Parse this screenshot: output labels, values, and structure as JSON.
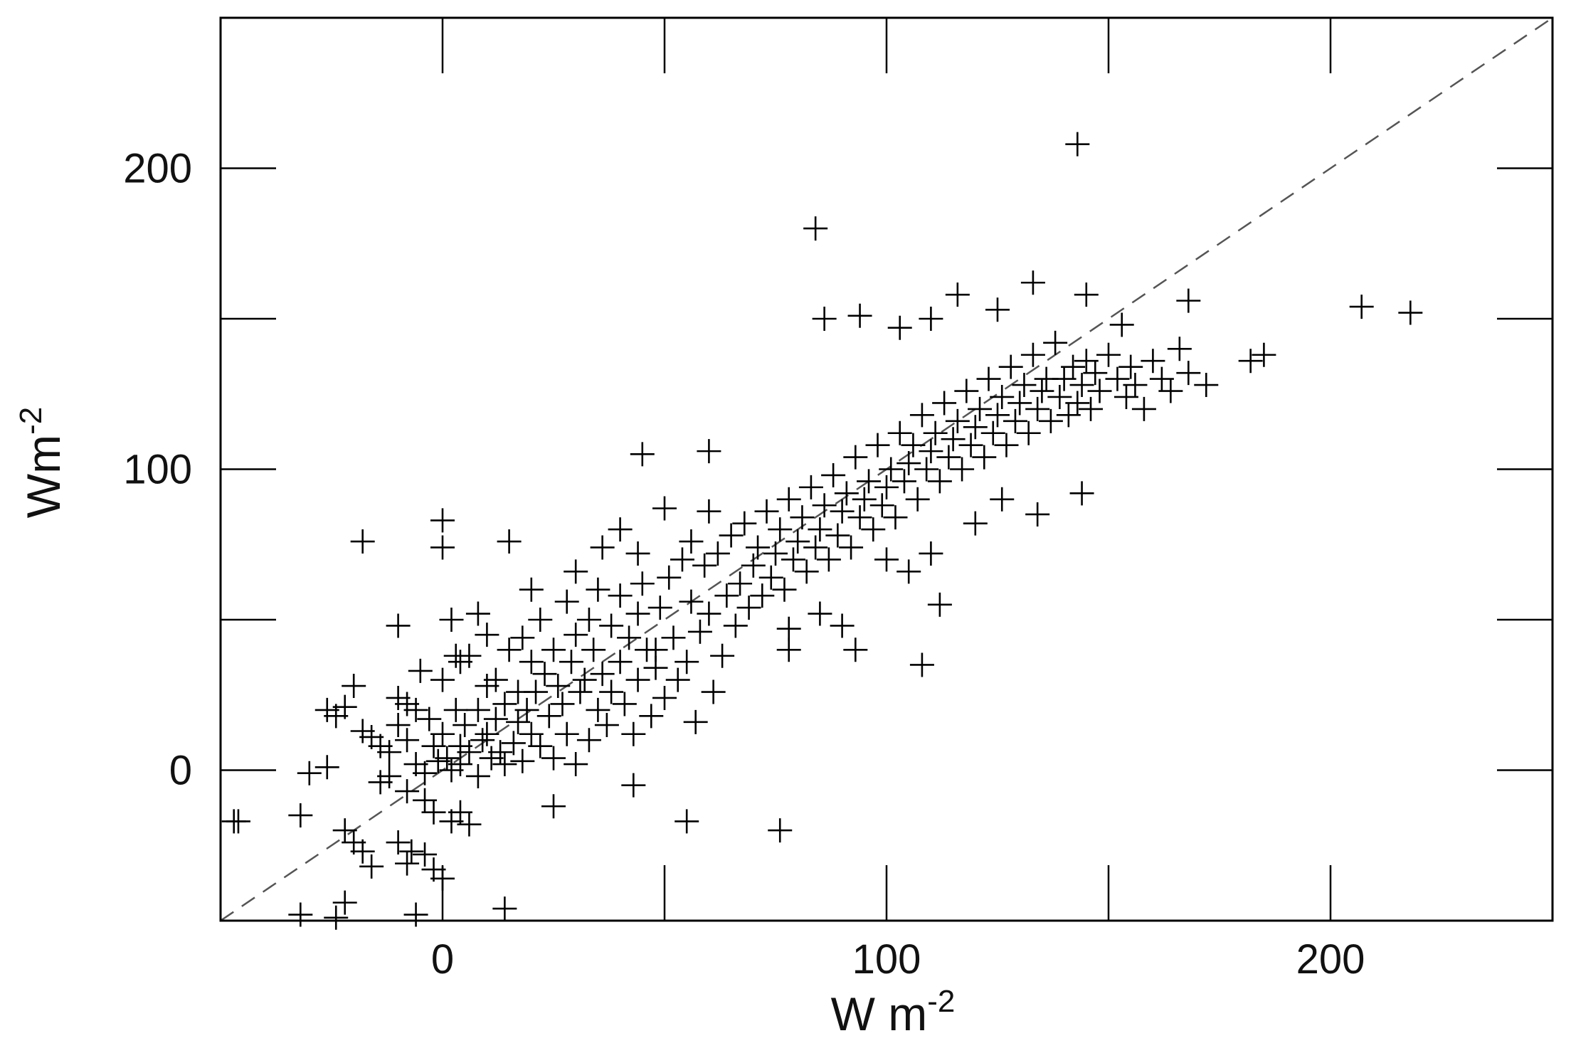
{
  "chart_data": {
    "type": "scatter",
    "title": "",
    "xlabel": {
      "base": "W m",
      "exponent": "-2"
    },
    "ylabel": {
      "base": "Wm",
      "exponent": "-2"
    },
    "xlim": [
      -50,
      250
    ],
    "ylim": [
      -50,
      250
    ],
    "xticks": [
      {
        "value": 0,
        "label": "0"
      },
      {
        "value": 100,
        "label": "100"
      },
      {
        "value": 200,
        "label": "200"
      }
    ],
    "yticks": [
      {
        "value": 0,
        "label": "0"
      },
      {
        "value": 100,
        "label": "100"
      },
      {
        "value": 200,
        "label": "200"
      }
    ],
    "minor_ticks": [
      50,
      150
    ],
    "reference_line": {
      "style": "dashed",
      "from": [
        -50,
        -50
      ],
      "to": [
        250,
        250
      ]
    },
    "marker": "plus",
    "grid": false,
    "series": [
      {
        "points": [
          [
            -46,
            -17
          ],
          [
            -32,
            -15
          ],
          [
            -30,
            -1
          ],
          [
            -26,
            1
          ],
          [
            -22,
            -20
          ],
          [
            -20,
            -24
          ],
          [
            -18,
            -27
          ],
          [
            -16,
            -32
          ],
          [
            -22,
            -44
          ],
          [
            -24,
            -49
          ],
          [
            -32,
            -48
          ],
          [
            -10,
            -24
          ],
          [
            -7,
            -27
          ],
          [
            -4,
            -28
          ],
          [
            -6,
            -48
          ],
          [
            -2,
            -33
          ],
          [
            0,
            -36
          ],
          [
            -8,
            -31
          ],
          [
            -14,
            -4
          ],
          [
            -8,
            -7
          ],
          [
            -4,
            -10
          ],
          [
            -2,
            -14
          ],
          [
            2,
            -17
          ],
          [
            4,
            -14
          ],
          [
            6,
            -18
          ],
          [
            -12,
            -2
          ],
          [
            -26,
            20
          ],
          [
            -24,
            18
          ],
          [
            -22,
            21
          ],
          [
            -20,
            28
          ],
          [
            -18,
            13
          ],
          [
            -16,
            11
          ],
          [
            -14,
            8
          ],
          [
            -12,
            6
          ],
          [
            -10,
            15
          ],
          [
            -10,
            24
          ],
          [
            -8,
            22
          ],
          [
            -8,
            10
          ],
          [
            -6,
            2
          ],
          [
            -5,
            33
          ],
          [
            -4,
            -1
          ],
          [
            -3,
            17
          ],
          [
            -2,
            8
          ],
          [
            -1,
            3
          ],
          [
            0,
            30
          ],
          [
            0,
            12
          ],
          [
            1,
            4
          ],
          [
            2,
            0
          ],
          [
            3,
            38
          ],
          [
            3,
            20
          ],
          [
            4,
            8
          ],
          [
            4,
            2
          ],
          [
            5,
            15
          ],
          [
            6,
            6
          ],
          [
            6,
            38
          ],
          [
            8,
            -2
          ],
          [
            8,
            20
          ],
          [
            9,
            10
          ],
          [
            10,
            12
          ],
          [
            10,
            28
          ],
          [
            11,
            4
          ],
          [
            12,
            17
          ],
          [
            12,
            30
          ],
          [
            13,
            6
          ],
          [
            14,
            22
          ],
          [
            14,
            2
          ],
          [
            15,
            40
          ],
          [
            16,
            9
          ],
          [
            17,
            16
          ],
          [
            17,
            26
          ],
          [
            18,
            44
          ],
          [
            18,
            3
          ],
          [
            19,
            20
          ],
          [
            20,
            36
          ],
          [
            20,
            12
          ],
          [
            21,
            26
          ],
          [
            22,
            8
          ],
          [
            22,
            50
          ],
          [
            23,
            32
          ],
          [
            24,
            18
          ],
          [
            25,
            4
          ],
          [
            25,
            40
          ],
          [
            26,
            28
          ],
          [
            27,
            22
          ],
          [
            28,
            12
          ],
          [
            28,
            56
          ],
          [
            29,
            36
          ],
          [
            30,
            45
          ],
          [
            30,
            2
          ],
          [
            31,
            26
          ],
          [
            32,
            30
          ],
          [
            33,
            10
          ],
          [
            33,
            50
          ],
          [
            34,
            40
          ],
          [
            35,
            20
          ],
          [
            35,
            60
          ],
          [
            36,
            32
          ],
          [
            37,
            15
          ],
          [
            38,
            48
          ],
          [
            38,
            26
          ],
          [
            40,
            36
          ],
          [
            40,
            58
          ],
          [
            41,
            22
          ],
          [
            42,
            44
          ],
          [
            43,
            12
          ],
          [
            44,
            52
          ],
          [
            44,
            30
          ],
          [
            45,
            62
          ],
          [
            46,
            40
          ],
          [
            47,
            18
          ],
          [
            48,
            34
          ],
          [
            49,
            54
          ],
          [
            50,
            24
          ],
          [
            51,
            64
          ],
          [
            52,
            44
          ],
          [
            53,
            30
          ],
          [
            54,
            70
          ],
          [
            55,
            36
          ],
          [
            56,
            56
          ],
          [
            57,
            16
          ],
          [
            58,
            46
          ],
          [
            59,
            68
          ],
          [
            60,
            52
          ],
          [
            61,
            26
          ],
          [
            62,
            72
          ],
          [
            63,
            38
          ],
          [
            64,
            58
          ],
          [
            65,
            78
          ],
          [
            66,
            48
          ],
          [
            67,
            62
          ],
          [
            68,
            82
          ],
          [
            69,
            54
          ],
          [
            70,
            68
          ],
          [
            71,
            74
          ],
          [
            72,
            58
          ],
          [
            73,
            86
          ],
          [
            74,
            64
          ],
          [
            75,
            72
          ],
          [
            76,
            80
          ],
          [
            77,
            60
          ],
          [
            78,
            90
          ],
          [
            79,
            70
          ],
          [
            80,
            76
          ],
          [
            81,
            84
          ],
          [
            82,
            66
          ],
          [
            83,
            94
          ],
          [
            84,
            74
          ],
          [
            85,
            80
          ],
          [
            86,
            88
          ],
          [
            87,
            70
          ],
          [
            88,
            98
          ],
          [
            89,
            78
          ],
          [
            90,
            86
          ],
          [
            91,
            92
          ],
          [
            92,
            74
          ],
          [
            93,
            104
          ],
          [
            94,
            84
          ],
          [
            95,
            90
          ],
          [
            96,
            96
          ],
          [
            97,
            80
          ],
          [
            98,
            108
          ],
          [
            99,
            88
          ],
          [
            100,
            94
          ],
          [
            101,
            100
          ],
          [
            102,
            84
          ],
          [
            103,
            112
          ],
          [
            104,
            96
          ],
          [
            105,
            102
          ],
          [
            106,
            108
          ],
          [
            107,
            90
          ],
          [
            108,
            118
          ],
          [
            109,
            100
          ],
          [
            110,
            106
          ],
          [
            111,
            112
          ],
          [
            112,
            96
          ],
          [
            113,
            122
          ],
          [
            114,
            104
          ],
          [
            115,
            110
          ],
          [
            116,
            116
          ],
          [
            117,
            100
          ],
          [
            118,
            126
          ],
          [
            119,
            108
          ],
          [
            120,
            114
          ],
          [
            121,
            120
          ],
          [
            122,
            104
          ],
          [
            123,
            130
          ],
          [
            124,
            112
          ],
          [
            125,
            118
          ],
          [
            126,
            124
          ],
          [
            127,
            108
          ],
          [
            128,
            134
          ],
          [
            129,
            116
          ],
          [
            130,
            122
          ],
          [
            131,
            128
          ],
          [
            132,
            112
          ],
          [
            133,
            138
          ],
          [
            134,
            120
          ],
          [
            135,
            126
          ],
          [
            136,
            130
          ],
          [
            137,
            116
          ],
          [
            138,
            142
          ],
          [
            139,
            124
          ],
          [
            140,
            130
          ],
          [
            141,
            118
          ],
          [
            142,
            134
          ],
          [
            143,
            122
          ],
          [
            144,
            128
          ],
          [
            145,
            136
          ],
          [
            146,
            120
          ],
          [
            147,
            132
          ],
          [
            148,
            126
          ],
          [
            150,
            138
          ],
          [
            152,
            130
          ],
          [
            154,
            124
          ],
          [
            155,
            134
          ],
          [
            156,
            128
          ],
          [
            158,
            120
          ],
          [
            160,
            136
          ],
          [
            162,
            130
          ],
          [
            164,
            126
          ],
          [
            166,
            140
          ],
          [
            168,
            132
          ],
          [
            172,
            128
          ],
          [
            182,
            136
          ],
          [
            185,
            138
          ],
          [
            207,
            154
          ],
          [
            218,
            152
          ],
          [
            168,
            156
          ],
          [
            143,
            208
          ],
          [
            84,
            180
          ],
          [
            -47,
            -17
          ],
          [
            -18,
            76
          ],
          [
            0,
            74
          ],
          [
            0,
            83
          ],
          [
            15,
            76
          ],
          [
            45,
            105
          ],
          [
            60,
            106
          ],
          [
            78,
            47
          ],
          [
            48,
            40
          ],
          [
            43,
            -5
          ],
          [
            55,
            -17
          ],
          [
            76,
            -20
          ],
          [
            25,
            -12
          ],
          [
            14,
            -46
          ],
          [
            40,
            80
          ],
          [
            50,
            87
          ],
          [
            86,
            150
          ],
          [
            94,
            151
          ],
          [
            103,
            147
          ],
          [
            110,
            150
          ],
          [
            116,
            158
          ],
          [
            125,
            153
          ],
          [
            133,
            162
          ],
          [
            145,
            158
          ],
          [
            153,
            148
          ],
          [
            134,
            85
          ],
          [
            144,
            92
          ],
          [
            108,
            35
          ],
          [
            112,
            55
          ],
          [
            93,
            40
          ],
          [
            85,
            52
          ],
          [
            90,
            48
          ],
          [
            78,
            40
          ],
          [
            100,
            70
          ],
          [
            105,
            66
          ],
          [
            110,
            72
          ],
          [
            120,
            82
          ],
          [
            126,
            90
          ],
          [
            -10,
            48
          ],
          [
            2,
            50
          ],
          [
            8,
            52
          ],
          [
            10,
            45
          ],
          [
            -6,
            20
          ],
          [
            4,
            36
          ],
          [
            20,
            60
          ],
          [
            30,
            66
          ],
          [
            36,
            74
          ],
          [
            44,
            72
          ],
          [
            56,
            76
          ],
          [
            60,
            86
          ]
        ]
      }
    ]
  }
}
